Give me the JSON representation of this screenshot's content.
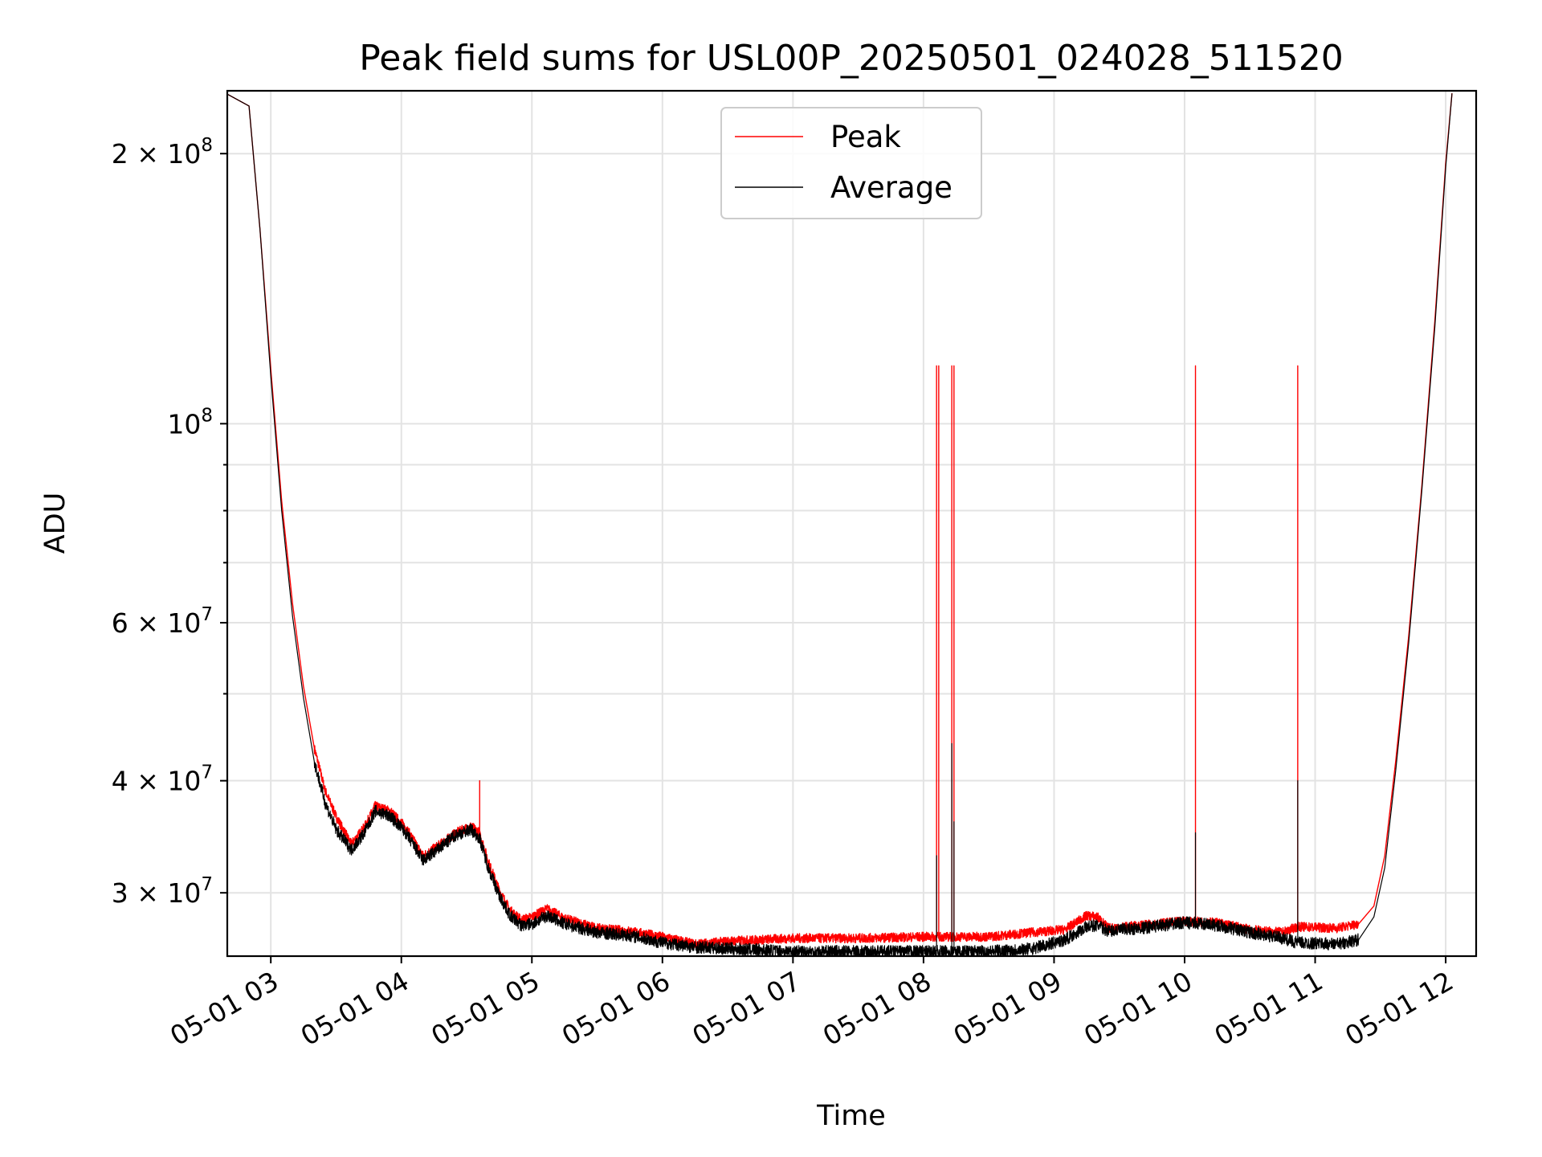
{
  "chart_data": {
    "type": "line",
    "title": "Peak field sums for USL00P_20250501_024028_511520",
    "xlabel": "Time",
    "ylabel": "ADU",
    "yscale": "log",
    "ylim": [
      25500000,
      235000000
    ],
    "xlim": [
      "2025-05-01 02:40",
      "2025-05-01 12:14"
    ],
    "grid": true,
    "legend_position": "upper center",
    "x_ticks": [
      {
        "t": "2025-05-01 03:00",
        "label": "05-01 03"
      },
      {
        "t": "2025-05-01 04:00",
        "label": "05-01 04"
      },
      {
        "t": "2025-05-01 05:00",
        "label": "05-01 05"
      },
      {
        "t": "2025-05-01 06:00",
        "label": "05-01 06"
      },
      {
        "t": "2025-05-01 07:00",
        "label": "05-01 07"
      },
      {
        "t": "2025-05-01 08:00",
        "label": "05-01 08"
      },
      {
        "t": "2025-05-01 09:00",
        "label": "05-01 09"
      },
      {
        "t": "2025-05-01 10:00",
        "label": "05-01 10"
      },
      {
        "t": "2025-05-01 11:00",
        "label": "05-01 11"
      },
      {
        "t": "2025-05-01 12:00",
        "label": "05-01 12"
      }
    ],
    "y_major_ticks": [
      {
        "v": 30000000,
        "mant": "3 × 10",
        "exp": "7"
      },
      {
        "v": 40000000,
        "mant": "4 × 10",
        "exp": "7"
      },
      {
        "v": 60000000,
        "mant": "6 × 10",
        "exp": "7"
      },
      {
        "v": 100000000,
        "mant": "10",
        "exp": "8"
      },
      {
        "v": 200000000,
        "mant": "2 × 10",
        "exp": "8"
      }
    ],
    "y_minor_ticks": [
      50000000,
      70000000,
      80000000,
      90000000
    ],
    "series": [
      {
        "name": "Peak",
        "color": "#ff0000",
        "points": [
          [
            "2025-05-01 02:40",
            233000000
          ],
          [
            "2025-05-01 02:50",
            226000000
          ],
          [
            "2025-05-01 02:55",
            165000000
          ],
          [
            "2025-05-01 03:00",
            115000000
          ],
          [
            "2025-05-01 03:05",
            82000000
          ],
          [
            "2025-05-01 03:10",
            63000000
          ],
          [
            "2025-05-01 03:15",
            51000000
          ],
          [
            "2025-05-01 03:20",
            43500000
          ],
          [
            "2025-05-01 03:25",
            39000000
          ],
          [
            "2025-05-01 03:30",
            36500000
          ],
          [
            "2025-05-01 03:37",
            34000000
          ],
          [
            "2025-05-01 03:43",
            35500000
          ],
          [
            "2025-05-01 03:48",
            37500000
          ],
          [
            "2025-05-01 03:55",
            37000000
          ],
          [
            "2025-05-01 04:02",
            35500000
          ],
          [
            "2025-05-01 04:10",
            33000000
          ],
          [
            "2025-05-01 04:18",
            34000000
          ],
          [
            "2025-05-01 04:25",
            35000000
          ],
          [
            "2025-05-01 04:32",
            35600000
          ],
          [
            "2025-05-01 04:36",
            35000000
          ],
          [
            "2025-05-01 04:40",
            32500000
          ],
          [
            "2025-05-01 04:45",
            30200000
          ],
          [
            "2025-05-01 04:50",
            28700000
          ],
          [
            "2025-05-01 04:55",
            28000000
          ],
          [
            "2025-05-01 05:00",
            28200000
          ],
          [
            "2025-05-01 05:07",
            28800000
          ],
          [
            "2025-05-01 05:15",
            28100000
          ],
          [
            "2025-05-01 05:30",
            27400000
          ],
          [
            "2025-05-01 05:45",
            27200000
          ],
          [
            "2025-05-01 06:00",
            26800000
          ],
          [
            "2025-05-01 06:15",
            26300000
          ],
          [
            "2025-05-01 06:30",
            26500000
          ],
          [
            "2025-05-01 07:00",
            26700000
          ],
          [
            "2025-05-01 07:30",
            26700000
          ],
          [
            "2025-05-01 08:00",
            26800000
          ],
          [
            "2025-05-01 08:30",
            26800000
          ],
          [
            "2025-05-01 08:50",
            27100000
          ],
          [
            "2025-05-01 09:05",
            27300000
          ],
          [
            "2025-05-01 09:15",
            28300000
          ],
          [
            "2025-05-01 09:20",
            28200000
          ],
          [
            "2025-05-01 09:25",
            27400000
          ],
          [
            "2025-05-01 09:40",
            27600000
          ],
          [
            "2025-05-01 10:00",
            27900000
          ],
          [
            "2025-05-01 10:15",
            27800000
          ],
          [
            "2025-05-01 10:30",
            27300000
          ],
          [
            "2025-05-01 10:45",
            27100000
          ],
          [
            "2025-05-01 10:52",
            27500000
          ],
          [
            "2025-05-01 11:10",
            27400000
          ],
          [
            "2025-05-01 11:20",
            27700000
          ],
          [
            "2025-05-01 11:27",
            29000000
          ],
          [
            "2025-05-01 11:32",
            33000000
          ],
          [
            "2025-05-01 11:37",
            42000000
          ],
          [
            "2025-05-01 11:43",
            58000000
          ],
          [
            "2025-05-01 11:49",
            85000000
          ],
          [
            "2025-05-01 11:55",
            130000000
          ],
          [
            "2025-05-01 12:00",
            195000000
          ],
          [
            "2025-05-01 12:03",
            235000000
          ]
        ],
        "spikes": [
          [
            "2025-05-01 04:36",
            40000000
          ],
          [
            "2025-05-01 08:06",
            116000000
          ],
          [
            "2025-05-01 08:07",
            116000000
          ],
          [
            "2025-05-01 08:13",
            116000000
          ],
          [
            "2025-05-01 08:14",
            116000000
          ],
          [
            "2025-05-01 10:05",
            116000000
          ],
          [
            "2025-05-01 10:52",
            116000000
          ]
        ]
      },
      {
        "name": "Average",
        "color": "#000000",
        "points": [
          [
            "2025-05-01 02:40",
            233000000
          ],
          [
            "2025-05-01 02:50",
            226000000
          ],
          [
            "2025-05-01 02:55",
            165000000
          ],
          [
            "2025-05-01 03:00",
            113000000
          ],
          [
            "2025-05-01 03:05",
            80000000
          ],
          [
            "2025-05-01 03:10",
            61000000
          ],
          [
            "2025-05-01 03:15",
            49500000
          ],
          [
            "2025-05-01 03:20",
            42000000
          ],
          [
            "2025-05-01 03:25",
            37800000
          ],
          [
            "2025-05-01 03:30",
            35300000
          ],
          [
            "2025-05-01 03:37",
            33500000
          ],
          [
            "2025-05-01 03:43",
            35000000
          ],
          [
            "2025-05-01 03:48",
            37000000
          ],
          [
            "2025-05-01 03:55",
            36500000
          ],
          [
            "2025-05-01 04:02",
            35000000
          ],
          [
            "2025-05-01 04:10",
            32600000
          ],
          [
            "2025-05-01 04:18",
            33700000
          ],
          [
            "2025-05-01 04:25",
            34800000
          ],
          [
            "2025-05-01 04:32",
            35300000
          ],
          [
            "2025-05-01 04:36",
            34500000
          ],
          [
            "2025-05-01 04:40",
            32000000
          ],
          [
            "2025-05-01 04:45",
            29800000
          ],
          [
            "2025-05-01 04:50",
            28300000
          ],
          [
            "2025-05-01 04:55",
            27600000
          ],
          [
            "2025-05-01 05:00",
            27700000
          ],
          [
            "2025-05-01 05:07",
            28300000
          ],
          [
            "2025-05-01 05:15",
            27700000
          ],
          [
            "2025-05-01 05:30",
            27100000
          ],
          [
            "2025-05-01 05:45",
            26900000
          ],
          [
            "2025-05-01 06:00",
            26400000
          ],
          [
            "2025-05-01 06:15",
            26100000
          ],
          [
            "2025-05-01 06:30",
            26000000
          ],
          [
            "2025-05-01 07:00",
            25800000
          ],
          [
            "2025-05-01 07:30",
            25800000
          ],
          [
            "2025-05-01 08:00",
            25800000
          ],
          [
            "2025-05-01 08:30",
            25800000
          ],
          [
            "2025-05-01 08:50",
            26000000
          ],
          [
            "2025-05-01 09:05",
            26600000
          ],
          [
            "2025-05-01 09:15",
            27500000
          ],
          [
            "2025-05-01 09:20",
            27600000
          ],
          [
            "2025-05-01 09:25",
            27200000
          ],
          [
            "2025-05-01 09:40",
            27400000
          ],
          [
            "2025-05-01 10:00",
            27800000
          ],
          [
            "2025-05-01 10:15",
            27600000
          ],
          [
            "2025-05-01 10:30",
            27100000
          ],
          [
            "2025-05-01 10:45",
            26700000
          ],
          [
            "2025-05-01 10:52",
            26400000
          ],
          [
            "2025-05-01 11:10",
            26300000
          ],
          [
            "2025-05-01 11:20",
            26600000
          ],
          [
            "2025-05-01 11:27",
            28200000
          ],
          [
            "2025-05-01 11:32",
            32000000
          ],
          [
            "2025-05-01 11:37",
            41000000
          ],
          [
            "2025-05-01 11:43",
            57000000
          ],
          [
            "2025-05-01 11:49",
            84000000
          ],
          [
            "2025-05-01 11:55",
            128000000
          ],
          [
            "2025-05-01 12:00",
            193000000
          ],
          [
            "2025-05-01 12:03",
            235000000
          ]
        ],
        "spikes": [
          [
            "2025-05-01 08:06",
            33000000
          ],
          [
            "2025-05-01 08:13",
            44000000
          ],
          [
            "2025-05-01 08:14",
            36000000
          ],
          [
            "2025-05-01 10:05",
            35000000
          ],
          [
            "2025-05-01 10:52",
            40000000
          ]
        ]
      }
    ]
  }
}
